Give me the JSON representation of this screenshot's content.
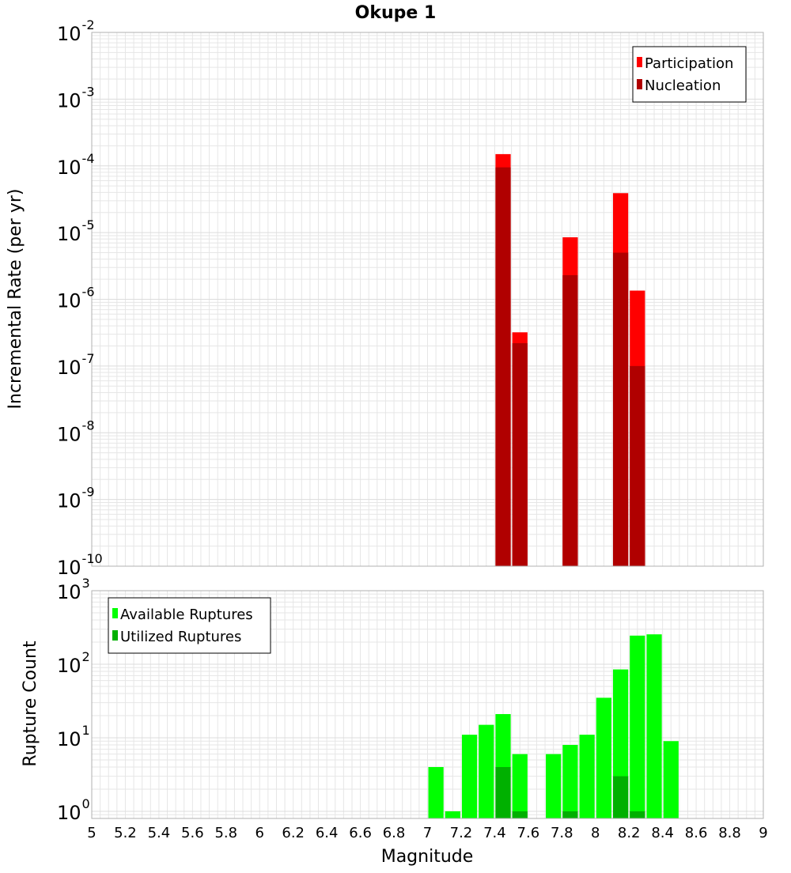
{
  "title": "Okupe 1",
  "colors": {
    "participation": "#ff0000",
    "nucleation": "#b00000",
    "available": "#00ff00",
    "utilized": "#00b000",
    "grid": "#e6e6e6",
    "frame": "#b0b0b0"
  },
  "chart_data": [
    {
      "type": "bar",
      "name": "top-panel",
      "ylabel": "Incremental Rate (per yr)",
      "yscale": "log",
      "ylim_exponents": [
        -10,
        -2
      ],
      "ytick_exponents": [
        -10,
        -9,
        -8,
        -7,
        -6,
        -5,
        -4,
        -3,
        -2
      ],
      "xlim": [
        5,
        9
      ],
      "bar_width": 0.1,
      "grid": true,
      "legend_position": "top-right",
      "series": [
        {
          "name": "Participation",
          "color_key": "participation",
          "points": [
            {
              "x": 7.45,
              "y": 0.00015
            },
            {
              "x": 7.55,
              "y": 3.2e-07
            },
            {
              "x": 7.85,
              "y": 8.5e-06
            },
            {
              "x": 8.15,
              "y": 3.9e-05
            },
            {
              "x": 8.25,
              "y": 1.35e-06
            }
          ]
        },
        {
          "name": "Nucleation",
          "color_key": "nucleation",
          "points": [
            {
              "x": 7.45,
              "y": 9.5e-05
            },
            {
              "x": 7.55,
              "y": 2.2e-07
            },
            {
              "x": 7.85,
              "y": 2.3e-06
            },
            {
              "x": 8.15,
              "y": 5e-06
            },
            {
              "x": 8.25,
              "y": 1e-07
            }
          ]
        }
      ]
    },
    {
      "type": "bar",
      "name": "bottom-panel",
      "ylabel": "Rupture Count",
      "xlabel": "Magnitude",
      "yscale": "log",
      "ylim": [
        0.8,
        1000
      ],
      "ytick_exponents": [
        0,
        1,
        2,
        3
      ],
      "xlim": [
        5,
        9
      ],
      "xticks": [
        "5",
        "5.2",
        "5.4",
        "5.6",
        "5.8",
        "6",
        "6.2",
        "6.4",
        "6.6",
        "6.8",
        "7",
        "7.2",
        "7.4",
        "7.6",
        "7.8",
        "8",
        "8.2",
        "8.4",
        "8.6",
        "8.8",
        "9"
      ],
      "bar_width": 0.1,
      "grid": true,
      "legend_position": "top-left",
      "series": [
        {
          "name": "Available Ruptures",
          "color_key": "available",
          "points": [
            {
              "x": 7.05,
              "y": 4
            },
            {
              "x": 7.15,
              "y": 1
            },
            {
              "x": 7.25,
              "y": 11
            },
            {
              "x": 7.35,
              "y": 15
            },
            {
              "x": 7.45,
              "y": 21
            },
            {
              "x": 7.55,
              "y": 6
            },
            {
              "x": 7.75,
              "y": 6
            },
            {
              "x": 7.85,
              "y": 8
            },
            {
              "x": 7.95,
              "y": 11
            },
            {
              "x": 8.05,
              "y": 35
            },
            {
              "x": 8.15,
              "y": 85
            },
            {
              "x": 8.25,
              "y": 245
            },
            {
              "x": 8.35,
              "y": 255
            },
            {
              "x": 8.45,
              "y": 9
            }
          ]
        },
        {
          "name": "Utilized Ruptures",
          "color_key": "utilized",
          "points": [
            {
              "x": 7.45,
              "y": 4
            },
            {
              "x": 7.55,
              "y": 1
            },
            {
              "x": 7.85,
              "y": 1
            },
            {
              "x": 8.15,
              "y": 3
            },
            {
              "x": 8.25,
              "y": 1
            }
          ]
        }
      ]
    }
  ]
}
